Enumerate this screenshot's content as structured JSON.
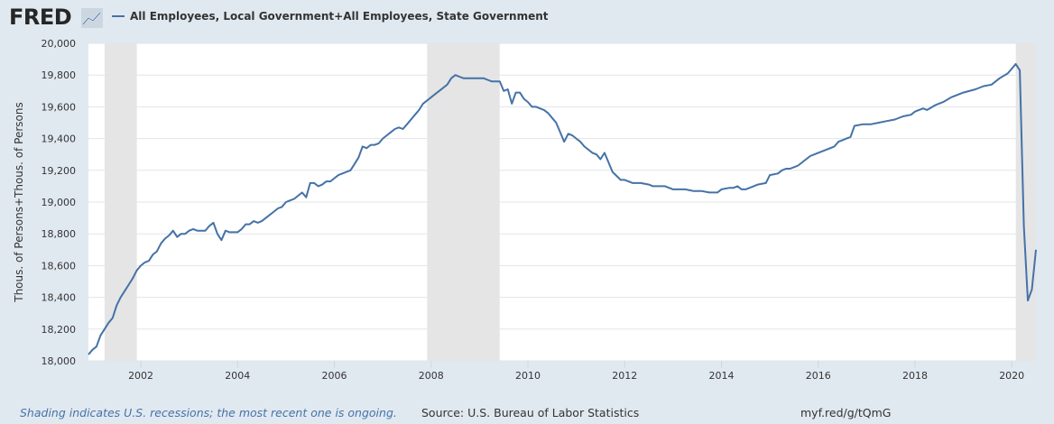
{
  "header": {
    "logo_text": "FRED",
    "logo_icon": "line-chart-icon",
    "legend_label": "All Employees, Local Government+All Employees, State Government",
    "series_color": "#4572a7"
  },
  "footer": {
    "note": "Shading indicates U.S. recessions; the most recent one is ongoing.",
    "source": "Source: U.S. Bureau of Labor Statistics",
    "url": "myf.red/g/tQmG"
  },
  "chart_data": {
    "type": "line",
    "title": "",
    "xlabel": "",
    "ylabel": "Thous. of Persons+Thous. of Persons",
    "xlim": [
      2000.917,
      2020.5
    ],
    "ylim": [
      18000,
      20000
    ],
    "grid": true,
    "y_ticks": [
      18000,
      18200,
      18400,
      18600,
      18800,
      19000,
      19200,
      19400,
      19600,
      19800,
      20000
    ],
    "y_tick_labels": [
      "18,000",
      "18,200",
      "18,400",
      "18,600",
      "18,800",
      "19,000",
      "19,200",
      "19,400",
      "19,600",
      "19,800",
      "20,000"
    ],
    "x_ticks": [
      2002,
      2004,
      2006,
      2008,
      2010,
      2012,
      2014,
      2016,
      2018,
      2020
    ],
    "x_tick_labels": [
      "2002",
      "2004",
      "2006",
      "2008",
      "2010",
      "2012",
      "2014",
      "2016",
      "2018",
      "2020"
    ],
    "recessions": [
      [
        2001.25,
        2001.917
      ],
      [
        2007.917,
        2009.417
      ],
      [
        2020.083,
        2020.5
      ]
    ],
    "series": [
      {
        "name": "All Employees, Local Government+All Employees, State Government",
        "x": [
          2000.917,
          2001.0,
          2001.083,
          2001.167,
          2001.25,
          2001.333,
          2001.417,
          2001.5,
          2001.583,
          2001.667,
          2001.75,
          2001.833,
          2001.917,
          2002.0,
          2002.083,
          2002.167,
          2002.25,
          2002.333,
          2002.417,
          2002.5,
          2002.583,
          2002.667,
          2002.75,
          2002.833,
          2002.917,
          2003.0,
          2003.083,
          2003.167,
          2003.25,
          2003.333,
          2003.417,
          2003.5,
          2003.583,
          2003.667,
          2003.75,
          2003.833,
          2003.917,
          2004.0,
          2004.083,
          2004.167,
          2004.25,
          2004.333,
          2004.417,
          2004.5,
          2004.583,
          2004.667,
          2004.75,
          2004.833,
          2004.917,
          2005.0,
          2005.083,
          2005.167,
          2005.25,
          2005.333,
          2005.417,
          2005.5,
          2005.583,
          2005.667,
          2005.75,
          2005.833,
          2005.917,
          2006.0,
          2006.083,
          2006.167,
          2006.25,
          2006.333,
          2006.417,
          2006.5,
          2006.583,
          2006.667,
          2006.75,
          2006.833,
          2006.917,
          2007.0,
          2007.083,
          2007.167,
          2007.25,
          2007.333,
          2007.417,
          2007.5,
          2007.583,
          2007.667,
          2007.75,
          2007.833,
          2007.917,
          2008.0,
          2008.083,
          2008.167,
          2008.25,
          2008.333,
          2008.417,
          2008.5,
          2008.583,
          2008.667,
          2008.75,
          2008.833,
          2008.917,
          2009.0,
          2009.083,
          2009.167,
          2009.25,
          2009.333,
          2009.417,
          2009.5,
          2009.583,
          2009.667,
          2009.75,
          2009.833,
          2009.917,
          2010.0,
          2010.083,
          2010.167,
          2010.25,
          2010.333,
          2010.417,
          2010.5,
          2010.583,
          2010.667,
          2010.75,
          2010.833,
          2010.917,
          2011.0,
          2011.083,
          2011.167,
          2011.25,
          2011.333,
          2011.417,
          2011.5,
          2011.583,
          2011.75,
          2011.917,
          2012.0,
          2012.167,
          2012.333,
          2012.5,
          2012.583,
          2012.667,
          2012.833,
          2012.917,
          2013.0,
          2013.083,
          2013.25,
          2013.417,
          2013.5,
          2013.583,
          2013.75,
          2013.917,
          2014.0,
          2014.167,
          2014.25,
          2014.333,
          2014.417,
          2014.5,
          2014.583,
          2014.667,
          2014.75,
          2014.917,
          2015.0,
          2015.167,
          2015.25,
          2015.333,
          2015.417,
          2015.5,
          2015.583,
          2015.667,
          2015.75,
          2015.833,
          2015.917,
          2016.0,
          2016.083,
          2016.167,
          2016.333,
          2016.417,
          2016.5,
          2016.583,
          2016.667,
          2016.75,
          2016.917,
          2017.0,
          2017.083,
          2017.25,
          2017.417,
          2017.583,
          2017.75,
          2017.917,
          2018.0,
          2018.083,
          2018.167,
          2018.25,
          2018.417,
          2018.583,
          2018.75,
          2018.917,
          2019.0,
          2019.25,
          2019.417,
          2019.583,
          2019.75,
          2019.917,
          2020.0,
          2020.083,
          2020.167,
          2020.25,
          2020.333,
          2020.417,
          2020.5
        ],
        "y": [
          18040,
          18070,
          18090,
          18160,
          18200,
          18240,
          18270,
          18350,
          18400,
          18440,
          18480,
          18520,
          18570,
          18600,
          18620,
          18630,
          18670,
          18690,
          18740,
          18770,
          18790,
          18820,
          18780,
          18800,
          18800,
          18820,
          18830,
          18820,
          18820,
          18820,
          18850,
          18870,
          18800,
          18760,
          18820,
          18810,
          18810,
          18810,
          18830,
          18860,
          18860,
          18880,
          18870,
          18880,
          18900,
          18920,
          18940,
          18960,
          18970,
          19000,
          19010,
          19020,
          19040,
          19060,
          19030,
          19120,
          19120,
          19100,
          19110,
          19130,
          19130,
          19150,
          19170,
          19180,
          19190,
          19200,
          19240,
          19280,
          19350,
          19340,
          19360,
          19360,
          19370,
          19400,
          19420,
          19440,
          19460,
          19470,
          19460,
          19490,
          19520,
          19550,
          19580,
          19620,
          19640,
          19660,
          19680,
          19700,
          19720,
          19740,
          19780,
          19800,
          19790,
          19780,
          19780,
          19780,
          19780,
          19780,
          19780,
          19770,
          19760,
          19760,
          19760,
          19700,
          19710,
          19620,
          19690,
          19690,
          19650,
          19630,
          19600,
          19600,
          19590,
          19580,
          19560,
          19530,
          19500,
          19440,
          19380,
          19430,
          19420,
          19400,
          19380,
          19350,
          19330,
          19310,
          19300,
          19270,
          19310,
          19190,
          19140,
          19140,
          19120,
          19120,
          19110,
          19100,
          19100,
          19100,
          19090,
          19080,
          19080,
          19080,
          19070,
          19070,
          19070,
          19060,
          19060,
          19080,
          19090,
          19090,
          19100,
          19080,
          19080,
          19090,
          19100,
          19110,
          19120,
          19170,
          19180,
          19200,
          19210,
          19210,
          19220,
          19230,
          19250,
          19270,
          19290,
          19300,
          19310,
          19320,
          19330,
          19350,
          19380,
          19390,
          19400,
          19410,
          19480,
          19490,
          19490,
          19490,
          19500,
          19510,
          19520,
          19540,
          19550,
          19570,
          19580,
          19590,
          19580,
          19610,
          19630,
          19660,
          19680,
          19690,
          19710,
          19730,
          19740,
          19780,
          19810,
          19840,
          19870,
          19830,
          18850,
          18380,
          18450,
          18700
        ]
      }
    ]
  }
}
